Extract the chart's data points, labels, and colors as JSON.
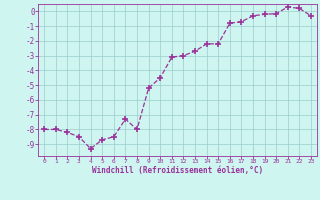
{
  "x": [
    0,
    1,
    2,
    3,
    4,
    5,
    6,
    7,
    8,
    9,
    10,
    11,
    12,
    13,
    14,
    15,
    16,
    17,
    18,
    19,
    20,
    21,
    22,
    23
  ],
  "y": [
    -8.0,
    -8.0,
    -8.2,
    -8.5,
    -9.3,
    -8.7,
    -8.5,
    -7.3,
    -8.0,
    -5.2,
    -4.5,
    -3.1,
    -3.0,
    -2.7,
    -2.2,
    -2.2,
    -0.8,
    -0.7,
    -0.3,
    -0.2,
    -0.15,
    0.3,
    0.2,
    -0.3
  ],
  "line_color": "#993399",
  "marker": "+",
  "markersize": 4,
  "markeredgewidth": 1.2,
  "linewidth": 0.9,
  "bg_color": "#cef5f0",
  "grid_color": "#99cccc",
  "xlabel": "Windchill (Refroidissement éolien,°C)",
  "tick_color": "#993399",
  "ylim": [
    -9.8,
    0.5
  ],
  "xlim": [
    -0.5,
    23.5
  ],
  "yticks": [
    0,
    -1,
    -2,
    -3,
    -4,
    -5,
    -6,
    -7,
    -8,
    -9
  ],
  "xticks": [
    0,
    1,
    2,
    3,
    4,
    5,
    6,
    7,
    8,
    9,
    10,
    11,
    12,
    13,
    14,
    15,
    16,
    17,
    18,
    19,
    20,
    21,
    22,
    23
  ],
  "figsize": [
    3.2,
    2.0
  ],
  "dpi": 100,
  "spine_color": "#993399",
  "xlabel_fontsize": 5.5,
  "ytick_fontsize": 5.5,
  "xtick_fontsize": 4.5
}
